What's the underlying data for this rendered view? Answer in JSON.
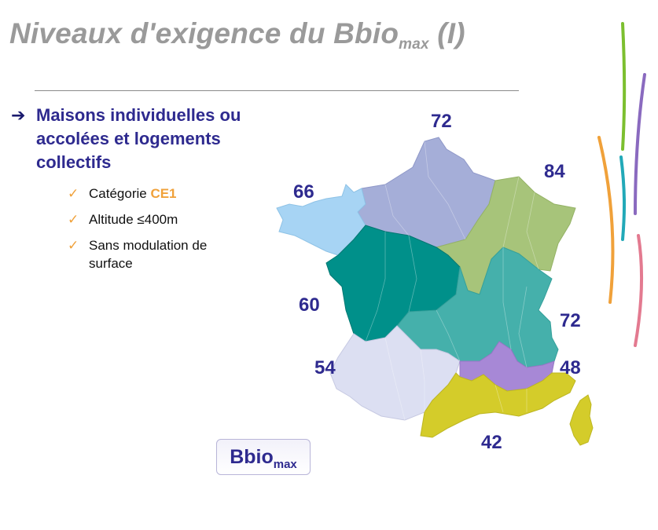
{
  "title": {
    "main": "Niveaux d'exigence du Bbio",
    "sub": "max",
    "suffix": " (I)"
  },
  "bullet": {
    "arrow": "➔",
    "text": "Maisons individuelles ou accolées et logements collectifs"
  },
  "subitems": [
    {
      "check": "✓",
      "text": "Catégorie ",
      "highlight": "CE1"
    },
    {
      "check": "✓",
      "text": "Altitude ≤400m"
    },
    {
      "check": "✓",
      "text": "Sans modulation de surface"
    }
  ],
  "zones": [
    {
      "id": "H1a",
      "value": "72",
      "color": "#a5aed8"
    },
    {
      "id": "H1b",
      "value": "84",
      "color": "#a7c47a"
    },
    {
      "id": "H2a",
      "value": "66",
      "color": "#a7d4f4"
    },
    {
      "id": "H2b",
      "value": "60",
      "color": "#00908a"
    },
    {
      "id": "H1c",
      "value": "72",
      "color": "#45b0ab"
    },
    {
      "id": "H2c",
      "value": "54",
      "color": "#dcdff2"
    },
    {
      "id": "H2d",
      "value": "48",
      "color": "#a788d6"
    },
    {
      "id": "H3",
      "value": "42",
      "color": "#d4cc2a"
    }
  ],
  "badge": {
    "main": "Bbio",
    "sub": "max"
  },
  "decoration_colors": [
    "#7cbf2f",
    "#8a6abf",
    "#f0a13a",
    "#22a9b8",
    "#e37a90"
  ]
}
